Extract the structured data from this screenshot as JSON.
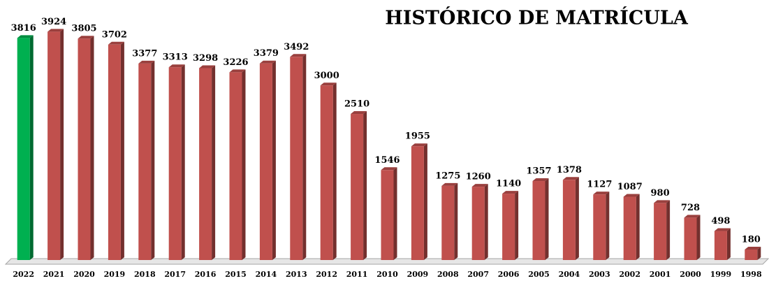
{
  "chart_data": {
    "type": "bar3d",
    "title": "HISTÓRICO DE MATRÍCULA",
    "categories": [
      "2022",
      "2021",
      "2020",
      "2019",
      "2018",
      "2017",
      "2016",
      "2015",
      "2014",
      "2013",
      "2012",
      "2011",
      "2010",
      "2009",
      "2008",
      "2007",
      "2006",
      "2005",
      "2004",
      "2003",
      "2002",
      "2001",
      "2000",
      "1999",
      "1998"
    ],
    "values": [
      3816,
      3924,
      3805,
      3702,
      3377,
      3313,
      3298,
      3226,
      3379,
      3492,
      3000,
      2510,
      1546,
      1955,
      1275,
      1260,
      1140,
      1357,
      1378,
      1127,
      1087,
      980,
      728,
      498,
      180
    ],
    "colors": [
      "#00b050",
      "#c0504d",
      "#c0504d",
      "#c0504d",
      "#c0504d",
      "#c0504d",
      "#c0504d",
      "#c0504d",
      "#c0504d",
      "#c0504d",
      "#c0504d",
      "#c0504d",
      "#c0504d",
      "#c0504d",
      "#c0504d",
      "#c0504d",
      "#c0504d",
      "#c0504d",
      "#c0504d",
      "#c0504d",
      "#c0504d",
      "#c0504d",
      "#c0504d",
      "#c0504d",
      "#c0504d"
    ],
    "ylim": [
      0,
      4000
    ]
  }
}
